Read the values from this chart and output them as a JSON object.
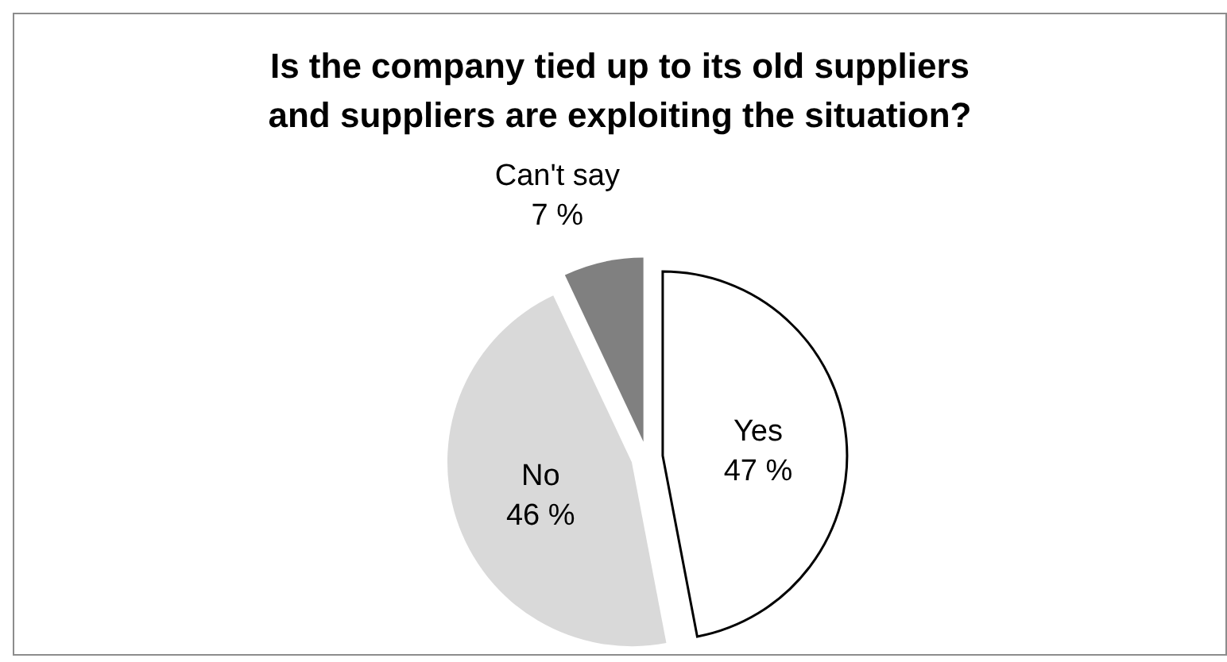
{
  "chart_data": {
    "type": "pie",
    "title": "Is the company tied up to its old suppliers\nand suppliers are exploiting the situation?",
    "categories": [
      "Yes",
      "No",
      "Can't say"
    ],
    "values": [
      47,
      46,
      7
    ],
    "value_labels": [
      "47 %",
      "46 %",
      "7 %"
    ],
    "colors": [
      "#ffffff",
      "#d9d9d9",
      "#808080"
    ],
    "legend": false
  }
}
